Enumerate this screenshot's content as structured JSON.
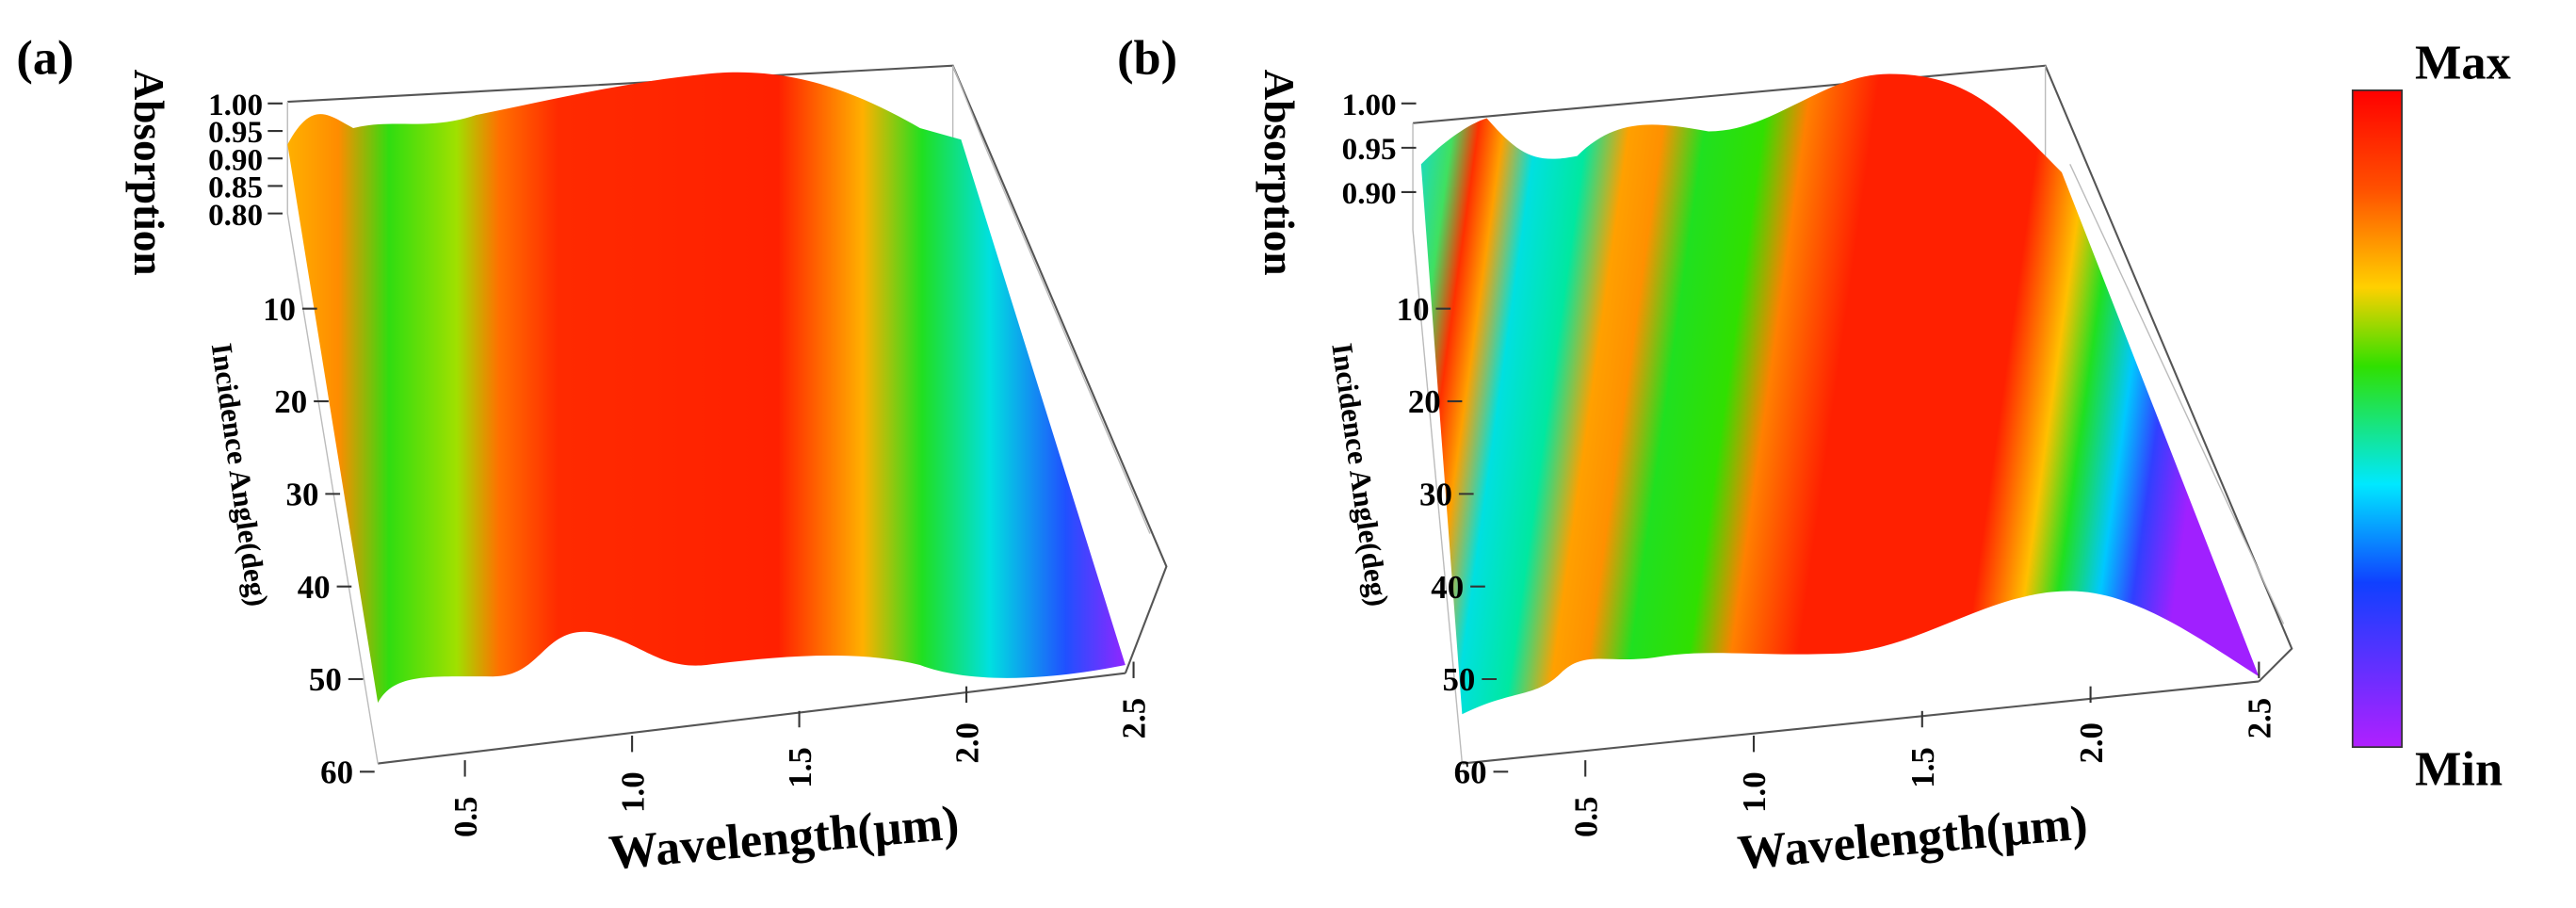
{
  "panels": [
    {
      "label": "(a)",
      "z_title": "Absorption",
      "y_title": "Incidence Angle(deg)",
      "x_title": "Wavelength(μm)",
      "z_ticks": [
        {
          "value": 1,
          "label": "1.00"
        },
        0.95,
        {
          "value": 0.9,
          "label": "0.90"
        },
        0.85,
        {
          "value": 0.8,
          "label": "0.80"
        }
      ],
      "y_ticks": [
        10,
        20,
        30,
        40,
        50,
        60
      ],
      "x_ticks": [
        0.5,
        {
          "value": 1,
          "label": "1.0"
        },
        1.5,
        {
          "value": 2,
          "label": "2.0"
        },
        2.5
      ]
    },
    {
      "label": "(b)",
      "z_title": "Absorption",
      "y_title": "Incidence Angle(deg)",
      "x_title": "Wavelength(μm)",
      "z_ticks": [
        {
          "value": 1,
          "label": "1.00"
        },
        0.95,
        {
          "value": 0.9,
          "label": "0.90"
        }
      ],
      "y_ticks": [
        10,
        20,
        30,
        40,
        50,
        60
      ],
      "x_ticks": [
        0.5,
        {
          "value": 1,
          "label": "1.0"
        },
        1.5,
        {
          "value": 2,
          "label": "2.0"
        },
        2.5
      ]
    }
  ],
  "colorbar": {
    "max_label": "Max",
    "min_label": "Min"
  }
}
